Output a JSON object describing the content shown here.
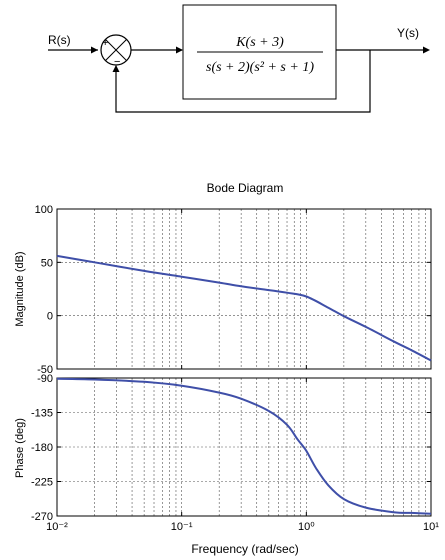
{
  "block_diagram": {
    "input_label": "R(s)",
    "output_label": "Y(s)",
    "summing_plus": "+",
    "summing_minus": "−",
    "tf_numerator": "K(s + 3)",
    "tf_denominator": "s(s + 2)(s² + s + 1)"
  },
  "chart_data": [
    {
      "type": "line",
      "title": "Bode Diagram",
      "ylabel": "Magnitude (dB)",
      "xlabel": "",
      "xscale": "log",
      "xlim": [
        0.01,
        10
      ],
      "ylim": [
        -50,
        100
      ],
      "yticks": [
        -50,
        0,
        50,
        100
      ],
      "grid": true,
      "series": [
        {
          "color": "#3F4FA8",
          "x": [
            0.01,
            0.02,
            0.05,
            0.1,
            0.2,
            0.3,
            0.5,
            0.7,
            1.0,
            1.5,
            2.0,
            3.0,
            5.0,
            7.0,
            10.0
          ],
          "y": [
            56,
            50,
            42,
            36.5,
            31,
            27.5,
            24,
            21.5,
            18,
            7.5,
            -0.5,
            -10.5,
            -24,
            -32.5,
            -42
          ]
        }
      ]
    },
    {
      "type": "line",
      "title": "",
      "ylabel": "Phase (deg)",
      "xlabel": "Frequency  (rad/sec)",
      "xscale": "log",
      "xlim": [
        0.01,
        10
      ],
      "ylim": [
        -270,
        -90
      ],
      "yticks": [
        -270,
        -225,
        -180,
        -135,
        -90
      ],
      "xticks": [
        "10⁻²",
        "10⁻¹",
        "10⁰",
        "10¹"
      ],
      "grid": true,
      "series": [
        {
          "color": "#3F4FA8",
          "x": [
            0.01,
            0.02,
            0.05,
            0.1,
            0.2,
            0.3,
            0.5,
            0.7,
            0.85,
            1.0,
            1.2,
            1.5,
            2.0,
            3.0,
            5.0,
            7.0,
            10.0
          ],
          "y": [
            -91,
            -92,
            -95,
            -100,
            -109,
            -117,
            -133,
            -151,
            -170,
            -185,
            -208,
            -230,
            -248,
            -259,
            -265,
            -266,
            -267
          ]
        }
      ]
    }
  ]
}
